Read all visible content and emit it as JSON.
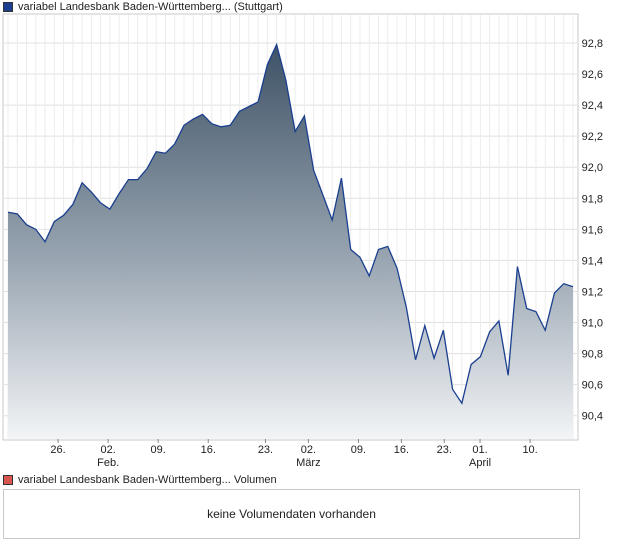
{
  "price_legend": {
    "series_name": "variabel Landesbank Baden-Württemberg... (Stuttgart)",
    "color": "#1a3f8f"
  },
  "volume_legend": {
    "series_name": "variabel Landesbank Baden-Württemberg... Volumen",
    "color": "#d9534f"
  },
  "volume_panel": {
    "message": "keine Volumendaten vorhanden"
  },
  "chart_data": {
    "type": "area",
    "ylim": [
      90.25,
      92.98
    ],
    "y_ticks": [
      90.4,
      90.6,
      90.8,
      91.0,
      91.2,
      91.4,
      91.6,
      91.8,
      92.0,
      92.2,
      92.4,
      92.6,
      92.8
    ],
    "y_tick_labels": [
      "90,4",
      "90,6",
      "90,8",
      "91,0",
      "91,2",
      "91,4",
      "91,6",
      "91,8",
      "92,0",
      "92,2",
      "92,4",
      "92,6",
      "92,8"
    ],
    "x_tick_labels": [
      "26.",
      "02.",
      "09.",
      "16.",
      "23.",
      "02.",
      "09.",
      "16.",
      "23.",
      "01.",
      "10."
    ],
    "x_month_labels": [
      "Feb.",
      "März",
      "April"
    ],
    "grid": true,
    "series": [
      {
        "values": [
          91.71,
          91.7,
          91.63,
          91.6,
          91.52,
          91.65,
          91.69,
          91.76,
          91.9,
          91.84,
          91.77,
          91.73,
          91.83,
          91.92,
          91.92,
          91.99,
          92.1,
          92.09,
          92.15,
          92.27,
          92.31,
          92.34,
          92.28,
          92.26,
          92.27,
          92.36,
          92.39,
          92.42,
          92.66,
          92.79,
          92.56,
          92.23,
          92.33,
          91.98,
          91.82,
          91.66,
          91.93,
          91.47,
          91.42,
          91.3,
          91.47,
          91.49,
          91.35,
          91.1,
          90.76,
          90.98,
          90.77,
          90.95,
          90.57,
          90.48,
          90.73,
          90.78,
          90.94,
          91.01,
          90.66,
          91.36,
          91.09,
          91.07,
          90.95,
          91.19,
          91.25,
          91.23
        ]
      }
    ]
  }
}
